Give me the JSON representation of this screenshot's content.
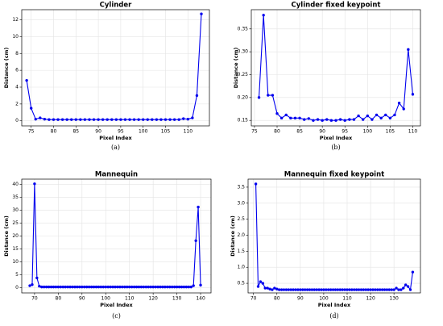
{
  "chart_data": [
    {
      "type": "line",
      "title": "Cylinder",
      "caption": "(a)",
      "xlabel": "Pixel Index",
      "ylabel": "Distance (cm)",
      "grid": true,
      "color": "#0000ee",
      "xlim": [
        72.9,
        114.8
      ],
      "ylim": [
        -0.6,
        13.2
      ],
      "xticks": [
        75,
        80,
        85,
        90,
        95,
        100,
        105,
        110
      ],
      "yticks": [
        0,
        2,
        4,
        6,
        8,
        10,
        12
      ],
      "x": [
        74,
        75,
        76,
        77,
        78,
        79,
        80,
        81,
        82,
        83,
        84,
        85,
        86,
        87,
        88,
        89,
        90,
        91,
        92,
        93,
        94,
        95,
        96,
        97,
        98,
        99,
        100,
        101,
        102,
        103,
        104,
        105,
        106,
        107,
        108,
        109,
        110,
        111,
        112,
        113
      ],
      "values": [
        4.8,
        1.5,
        0.2,
        0.35,
        0.2,
        0.15,
        0.15,
        0.15,
        0.15,
        0.15,
        0.15,
        0.15,
        0.15,
        0.15,
        0.15,
        0.15,
        0.15,
        0.15,
        0.15,
        0.15,
        0.15,
        0.15,
        0.15,
        0.15,
        0.15,
        0.15,
        0.15,
        0.15,
        0.15,
        0.15,
        0.15,
        0.15,
        0.15,
        0.15,
        0.15,
        0.25,
        0.2,
        0.35,
        3.0,
        12.7
      ]
    },
    {
      "type": "line",
      "title": "Cylinder fixed keypoint",
      "caption": "(b)",
      "xlabel": "Pixel Index",
      "ylabel": "Distance (cm)",
      "grid": true,
      "color": "#0000ee",
      "xlim": [
        74.3,
        111.7
      ],
      "ylim": [
        0.138,
        0.392
      ],
      "xticks": [
        75,
        80,
        85,
        90,
        95,
        100,
        105,
        110
      ],
      "yticks": [
        {
          "value": 0.15,
          "label": "0.15"
        },
        {
          "value": 0.2,
          "label": "0.20"
        },
        {
          "value": 0.25,
          "label": "0.25"
        },
        {
          "value": 0.3,
          "label": "0.30"
        },
        {
          "value": 0.35,
          "label": "0.35"
        }
      ],
      "x": [
        76,
        77,
        78,
        79,
        80,
        81,
        82,
        83,
        84,
        85,
        86,
        87,
        88,
        89,
        90,
        91,
        92,
        93,
        94,
        95,
        96,
        97,
        98,
        99,
        100,
        101,
        102,
        103,
        104,
        105,
        106,
        107,
        108,
        109,
        110
      ],
      "values": [
        0.2,
        0.38,
        0.205,
        0.205,
        0.165,
        0.155,
        0.162,
        0.155,
        0.155,
        0.155,
        0.152,
        0.154,
        0.15,
        0.152,
        0.15,
        0.152,
        0.15,
        0.15,
        0.152,
        0.15,
        0.152,
        0.152,
        0.16,
        0.152,
        0.16,
        0.152,
        0.162,
        0.155,
        0.162,
        0.155,
        0.162,
        0.188,
        0.175,
        0.305,
        0.207
      ]
    },
    {
      "type": "line",
      "title": "Mannequin",
      "caption": "(c)",
      "xlabel": "Pixel Index",
      "ylabel": "Distance (cm)",
      "grid": true,
      "color": "#0000ee",
      "xlim": [
        64.6,
        144.4
      ],
      "ylim": [
        -2,
        42
      ],
      "xticks": [
        70,
        80,
        90,
        100,
        110,
        120,
        130,
        140
      ],
      "yticks": [
        0,
        5,
        10,
        15,
        20,
        25,
        30,
        35,
        40
      ],
      "x": [
        68,
        69,
        70,
        71,
        72,
        73,
        74,
        75,
        76,
        77,
        78,
        79,
        80,
        81,
        82,
        83,
        84,
        85,
        86,
        87,
        88,
        89,
        90,
        91,
        92,
        93,
        94,
        95,
        96,
        97,
        98,
        99,
        100,
        101,
        102,
        103,
        104,
        105,
        106,
        107,
        108,
        109,
        110,
        111,
        112,
        113,
        114,
        115,
        116,
        117,
        118,
        119,
        120,
        121,
        122,
        123,
        124,
        125,
        126,
        127,
        128,
        129,
        130,
        131,
        132,
        133,
        134,
        135,
        136,
        137,
        138,
        139,
        140
      ],
      "values": [
        0.8,
        1.2,
        40.2,
        3.8,
        0.6,
        0.3,
        0.3,
        0.3,
        0.3,
        0.3,
        0.3,
        0.3,
        0.3,
        0.3,
        0.3,
        0.3,
        0.3,
        0.3,
        0.3,
        0.3,
        0.3,
        0.3,
        0.3,
        0.3,
        0.3,
        0.3,
        0.3,
        0.3,
        0.3,
        0.3,
        0.3,
        0.3,
        0.3,
        0.3,
        0.3,
        0.3,
        0.3,
        0.3,
        0.3,
        0.3,
        0.3,
        0.3,
        0.3,
        0.3,
        0.3,
        0.3,
        0.3,
        0.3,
        0.3,
        0.3,
        0.3,
        0.3,
        0.3,
        0.3,
        0.3,
        0.3,
        0.3,
        0.3,
        0.3,
        0.3,
        0.3,
        0.3,
        0.3,
        0.3,
        0.3,
        0.3,
        0.3,
        0.3,
        0.3,
        0.8,
        18.2,
        31.2,
        1.0
      ]
    },
    {
      "type": "line",
      "title": "Mannequin fixed keypoint",
      "caption": "(d)",
      "xlabel": "Pixel Index",
      "ylabel": "Distance (cm)",
      "grid": true,
      "color": "#0000ee",
      "xlim": [
        67.7,
        141.3
      ],
      "ylim": [
        0.2,
        3.75
      ],
      "xticks": [
        70,
        80,
        90,
        100,
        110,
        120,
        130
      ],
      "yticks": [
        0.5,
        {
          "value": 1,
          "label": "1.0"
        },
        1.5,
        {
          "value": 2,
          "label": "2.0"
        },
        2.5,
        {
          "value": 3,
          "label": "3.0"
        },
        3.5
      ],
      "x": [
        71,
        72,
        73,
        74,
        75,
        76,
        77,
        78,
        79,
        80,
        81,
        82,
        83,
        84,
        85,
        86,
        87,
        88,
        89,
        90,
        91,
        92,
        93,
        94,
        95,
        96,
        97,
        98,
        99,
        100,
        101,
        102,
        103,
        104,
        105,
        106,
        107,
        108,
        109,
        110,
        111,
        112,
        113,
        114,
        115,
        116,
        117,
        118,
        119,
        120,
        121,
        122,
        123,
        124,
        125,
        126,
        127,
        128,
        129,
        130,
        131,
        132,
        133,
        134,
        135,
        136,
        137,
        138
      ],
      "values": [
        3.6,
        0.4,
        0.55,
        0.5,
        0.35,
        0.35,
        0.32,
        0.3,
        0.35,
        0.32,
        0.3,
        0.3,
        0.3,
        0.3,
        0.3,
        0.3,
        0.3,
        0.3,
        0.3,
        0.3,
        0.3,
        0.3,
        0.3,
        0.3,
        0.3,
        0.3,
        0.3,
        0.3,
        0.3,
        0.3,
        0.3,
        0.3,
        0.3,
        0.3,
        0.3,
        0.3,
        0.3,
        0.3,
        0.3,
        0.3,
        0.3,
        0.3,
        0.3,
        0.3,
        0.3,
        0.3,
        0.3,
        0.3,
        0.3,
        0.3,
        0.3,
        0.3,
        0.3,
        0.3,
        0.3,
        0.3,
        0.3,
        0.3,
        0.3,
        0.3,
        0.35,
        0.3,
        0.3,
        0.35,
        0.45,
        0.4,
        0.3,
        0.85
      ]
    }
  ]
}
